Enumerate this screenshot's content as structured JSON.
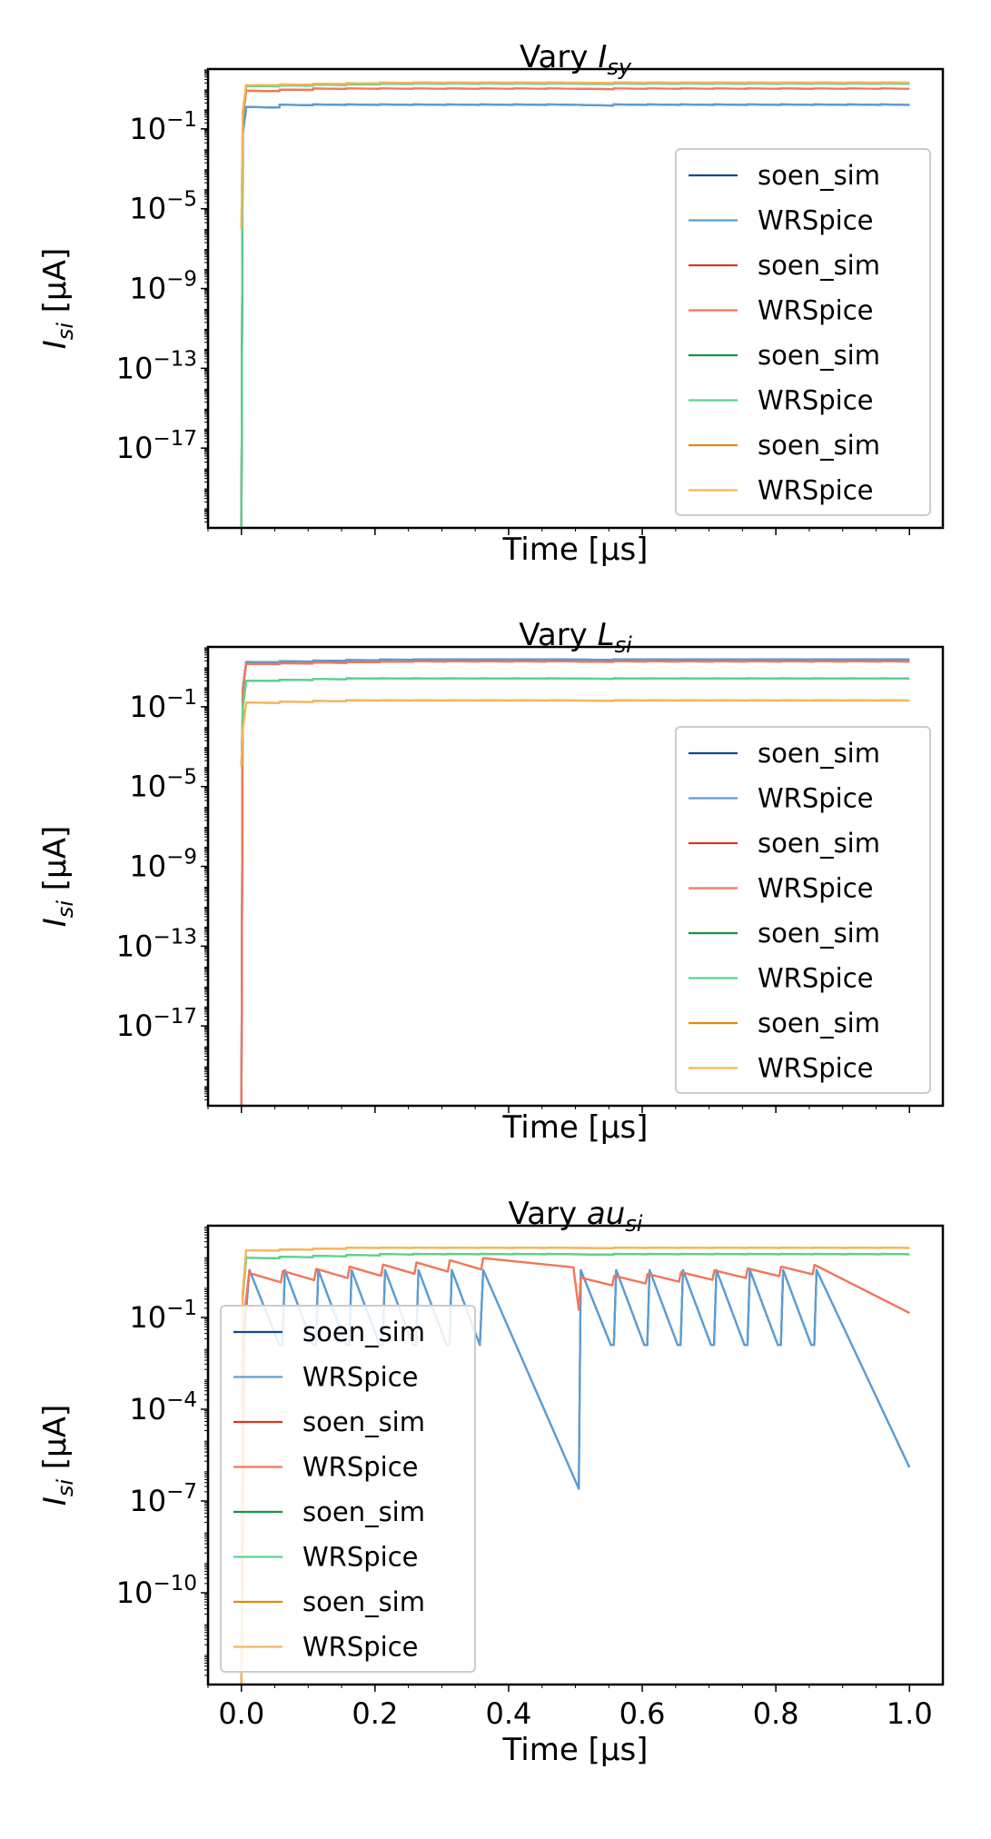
{
  "chart_data": [
    {
      "type": "line",
      "title": {
        "prefix": "Vary ",
        "base": "I",
        "sub": "sy"
      },
      "ylabel": {
        "base": "I",
        "sub": "si",
        "unit": " [μA]"
      },
      "xlabel": "Time [μs]",
      "yscale": "log",
      "ylim_exp": [
        -21,
        2
      ],
      "y_ticks": [
        {
          "base": "10",
          "exp": "−1"
        },
        {
          "base": "10",
          "exp": "−5"
        },
        {
          "base": "10",
          "exp": "−9"
        },
        {
          "base": "10",
          "exp": "−13"
        },
        {
          "base": "10",
          "exp": "−17"
        }
      ],
      "y_tick_exps": [
        -1,
        -5,
        -9,
        -13,
        -17
      ],
      "xlim": [
        -0.05,
        1.05
      ],
      "x_tick_values": [
        0.0,
        0.2,
        0.4,
        0.6,
        0.8,
        1.0
      ],
      "x_tick_labels": [],
      "legend_loc": "lower-right",
      "legend": [
        "soen_sim",
        "WRSpice",
        "soen_sim",
        "WRSpice",
        "soen_sim",
        "WRSpice",
        "soen_sim",
        "WRSpice"
      ],
      "series": [
        {
          "color": "#0d4a91",
          "profile": "steady",
          "level": 0.15,
          "decay": 0.2,
          "pulses": 0.15,
          "spike": -21
        },
        {
          "color": "#5b9ed6",
          "profile": "steady",
          "level": 0.15,
          "decay": 0.2,
          "pulses": 0.15,
          "spike": -21
        },
        {
          "color": "#d9381e",
          "profile": "steady",
          "level": 0.95,
          "decay": 0.12,
          "pulses": 0.08,
          "spike": -21
        },
        {
          "color": "#f2785a",
          "profile": "steady",
          "level": 0.95,
          "decay": 0.12,
          "pulses": 0.08,
          "spike": -21
        },
        {
          "color": "#16924a",
          "profile": "steady",
          "level": 1.2,
          "decay": 0.1,
          "pulses": 0.05,
          "spike": -21
        },
        {
          "color": "#5ad38d",
          "profile": "steady",
          "level": 1.2,
          "decay": 0.1,
          "pulses": 0.05,
          "spike": -21
        },
        {
          "color": "#e08a0b",
          "profile": "steady",
          "level": 1.25,
          "decay": 0.1,
          "pulses": 0.05,
          "spike": -6
        },
        {
          "color": "#f6b55a",
          "profile": "steady",
          "level": 1.25,
          "decay": 0.1,
          "pulses": 0.05,
          "spike": -6
        }
      ]
    },
    {
      "type": "line",
      "title": {
        "prefix": "Vary ",
        "base": "L",
        "sub": "si"
      },
      "ylabel": {
        "base": "I",
        "sub": "si",
        "unit": " [μA]"
      },
      "xlabel": "Time [μs]",
      "yscale": "log",
      "ylim_exp": [
        -21,
        2
      ],
      "y_ticks": [
        {
          "base": "10",
          "exp": "−1"
        },
        {
          "base": "10",
          "exp": "−5"
        },
        {
          "base": "10",
          "exp": "−9"
        },
        {
          "base": "10",
          "exp": "−13"
        },
        {
          "base": "10",
          "exp": "−17"
        }
      ],
      "y_tick_exps": [
        -1,
        -5,
        -9,
        -13,
        -17
      ],
      "xlim": [
        -0.05,
        1.05
      ],
      "x_tick_values": [
        0.0,
        0.2,
        0.4,
        0.6,
        0.8,
        1.0
      ],
      "x_tick_labels": [],
      "legend_loc": "lower-right",
      "legend": [
        "soen_sim",
        "WRSpice",
        "soen_sim",
        "WRSpice",
        "soen_sim",
        "WRSpice",
        "soen_sim",
        "WRSpice"
      ],
      "series": [
        {
          "color": "#0d4a91",
          "profile": "steady",
          "level": 1.3,
          "decay": 0.1,
          "pulses": 0.05,
          "spike": -21
        },
        {
          "color": "#5b9ed6",
          "profile": "steady",
          "level": 1.3,
          "decay": 0.1,
          "pulses": 0.05,
          "spike": -21
        },
        {
          "color": "#d9381e",
          "profile": "steady",
          "level": 1.2,
          "decay": 0.1,
          "pulses": 0.05,
          "spike": -21
        },
        {
          "color": "#f2785a",
          "profile": "steady",
          "level": 1.2,
          "decay": 0.1,
          "pulses": 0.05,
          "spike": -21
        },
        {
          "color": "#16924a",
          "profile": "steady",
          "level": 0.35,
          "decay": 0.1,
          "pulses": 0.06,
          "spike": -4
        },
        {
          "color": "#5ad38d",
          "profile": "steady",
          "level": 0.35,
          "decay": 0.1,
          "pulses": 0.06,
          "spike": -4
        },
        {
          "color": "#e08a0b",
          "profile": "steady",
          "level": -0.75,
          "decay": 0.1,
          "pulses": 0.06,
          "spike": -4
        },
        {
          "color": "#f6b55a",
          "profile": "steady",
          "level": -0.75,
          "decay": 0.1,
          "pulses": 0.06,
          "spike": -4
        }
      ]
    },
    {
      "type": "line",
      "title": {
        "prefix": "Vary ",
        "base": "au",
        "sub": "si"
      },
      "ylabel": {
        "base": "I",
        "sub": "si",
        "unit": " [μA]"
      },
      "xlabel": "Time [μs]",
      "yscale": "log",
      "ylim_exp": [
        -13,
        2
      ],
      "y_ticks": [
        {
          "base": "10",
          "exp": "−1"
        },
        {
          "base": "10",
          "exp": "−4"
        },
        {
          "base": "10",
          "exp": "−7"
        },
        {
          "base": "10",
          "exp": "−10"
        }
      ],
      "y_tick_exps": [
        -1,
        -4,
        -7,
        -10
      ],
      "xlim": [
        -0.05,
        1.05
      ],
      "x_tick_values": [
        0.0,
        0.2,
        0.4,
        0.6,
        0.8,
        1.0
      ],
      "x_tick_labels": [
        "0.0",
        "0.2",
        "0.4",
        "0.6",
        "0.8",
        "1.0"
      ],
      "legend_loc": "lower-left",
      "legend": [
        "soen_sim",
        "WRSpice",
        "soen_sim",
        "WRSpice",
        "soen_sim",
        "WRSpice",
        "soen_sim",
        "WRSpice"
      ],
      "series": [
        {
          "color": "#0d4a91",
          "profile": "fast",
          "spike": -13
        },
        {
          "color": "#5b9ed6",
          "profile": "fast",
          "spike": -13
        },
        {
          "color": "#d9381e",
          "profile": "medium",
          "spike": -13
        },
        {
          "color": "#f2785a",
          "profile": "medium",
          "spike": -13
        },
        {
          "color": "#16924a",
          "profile": "steady",
          "level": 1.0,
          "decay": 0.1,
          "pulses": 0.05,
          "spike": -13
        },
        {
          "color": "#5ad38d",
          "profile": "steady",
          "level": 1.0,
          "decay": 0.1,
          "pulses": 0.05,
          "spike": -13
        },
        {
          "color": "#e08a0b",
          "profile": "steady",
          "level": 1.2,
          "decay": 0.05,
          "pulses": 0.04,
          "spike": -13
        },
        {
          "color": "#f6b55a",
          "profile": "steady",
          "level": 1.2,
          "decay": 0.05,
          "pulses": 0.04,
          "spike": -13
        }
      ]
    }
  ]
}
